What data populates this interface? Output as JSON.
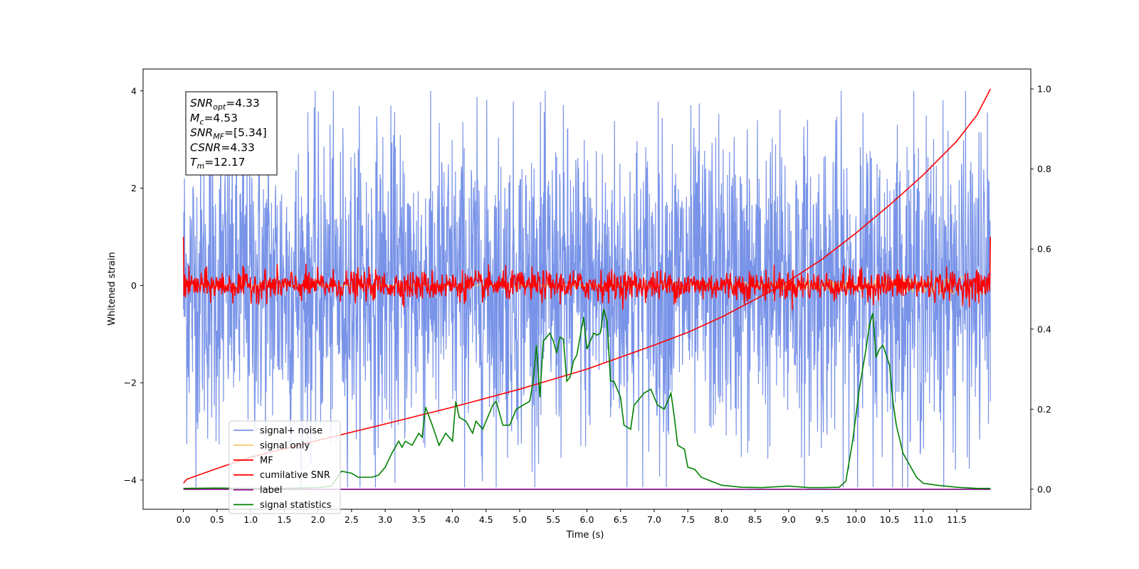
{
  "chart_data": {
    "type": "line",
    "xlabel": "Time (s)",
    "ylabel": "Whitened strain",
    "xlim": [
      -0.6,
      12.6
    ],
    "ylim": [
      -4.6,
      4.45
    ],
    "y2lim": [
      -0.05,
      1.05
    ],
    "xticks": [
      0.0,
      0.5,
      1.0,
      1.5,
      2.0,
      2.5,
      3.0,
      3.5,
      4.0,
      4.5,
      5.0,
      5.5,
      6.0,
      6.5,
      7.0,
      7.5,
      8.0,
      8.5,
      9.0,
      9.5,
      10.0,
      10.5,
      11.0,
      11.5
    ],
    "xtick_labels": [
      "0.0",
      "0.5",
      "1.0",
      "1.5",
      "2.0",
      "2.5",
      "3.0",
      "3.5",
      "4.0",
      "4.5",
      "5.0",
      "5.5",
      "6.0",
      "6.5",
      "7.0",
      "7.5",
      "8.0",
      "8.5",
      "9.0",
      "9.5",
      "10.0",
      "10.5",
      "11.0",
      "11.5"
    ],
    "yticks": [
      -4,
      -2,
      0,
      2,
      4
    ],
    "ytick_labels": [
      "−4",
      "−2",
      "0",
      "2",
      "4"
    ],
    "y2ticks": [
      0.0,
      0.2,
      0.4,
      0.6,
      0.8,
      1.0
    ],
    "y2tick_labels": [
      "0.0",
      "0.2",
      "0.4",
      "0.6",
      "0.8",
      "1.0"
    ],
    "grid": false,
    "legend_position": "lower-left",
    "info_box": [
      {
        "main": "SNR",
        "sub": "opt",
        "value": "=4.33"
      },
      {
        "main": "M",
        "sub": "c",
        "value": "=4.53"
      },
      {
        "main": "SNR",
        "sub": "MF",
        "value": "=[5.34]"
      },
      {
        "main": "CSNR",
        "sub": "",
        "value": "=4.33"
      },
      {
        "main": "T",
        "sub": "m",
        "value": "=12.17"
      }
    ],
    "series": [
      {
        "name": "signal+ noise",
        "color": "#7893e8",
        "axis": "left",
        "description_values": {
          "t_start": 0.0,
          "t_end": 12.0,
          "mean": 0.0,
          "typical_amplitude": 2.2,
          "max": 4.0,
          "min": -4.15
        }
      },
      {
        "name": "signal only",
        "color": "#f5c56a",
        "axis": "left",
        "description_values": {
          "t_start": 0.0,
          "t_end": 12.0,
          "max_amplitude": 0.2
        }
      },
      {
        "name": "MF",
        "color": "#ff0000",
        "axis": "left",
        "description_values": {
          "t_start": 0.0,
          "t_end": 12.0,
          "mean": 0.0,
          "typical_amplitude": 0.25,
          "start_value": 1.0,
          "end_value": 1.0
        }
      },
      {
        "name": "cumilative SNR",
        "color": "#ff0000",
        "axis": "right",
        "x": [
          0.0,
          0.05,
          0.5,
          1.0,
          2.0,
          3.0,
          4.0,
          5.0,
          6.0,
          7.0,
          7.5,
          8.0,
          8.5,
          9.0,
          9.5,
          10.0,
          10.5,
          11.0,
          11.5,
          11.8,
          12.0
        ],
        "y": [
          0.015,
          0.025,
          0.052,
          0.08,
          0.122,
          0.163,
          0.205,
          0.25,
          0.3,
          0.36,
          0.392,
          0.43,
          0.474,
          0.52,
          0.575,
          0.64,
          0.71,
          0.785,
          0.87,
          0.935,
          1.0
        ]
      },
      {
        "name": "label",
        "color": "#800080",
        "axis": "right",
        "x": [
          0.0,
          12.0
        ],
        "y": [
          0.0,
          0.0
        ]
      },
      {
        "name": "signal statistics",
        "color": "#008000",
        "axis": "right",
        "x": [
          0.0,
          0.5,
          1.0,
          1.5,
          2.0,
          2.2,
          2.35,
          2.5,
          2.6,
          2.8,
          2.9,
          3.0,
          3.1,
          3.15,
          3.2,
          3.25,
          3.3,
          3.4,
          3.5,
          3.55,
          3.6,
          3.7,
          3.8,
          3.9,
          4.0,
          4.05,
          4.1,
          4.2,
          4.3,
          4.35,
          4.45,
          4.5,
          4.6,
          4.65,
          4.75,
          4.85,
          4.95,
          5.05,
          5.15,
          5.2,
          5.25,
          5.3,
          5.35,
          5.4,
          5.45,
          5.5,
          5.55,
          5.6,
          5.65,
          5.7,
          5.75,
          5.8,
          5.85,
          5.95,
          6.0,
          6.1,
          6.15,
          6.2,
          6.25,
          6.3,
          6.35,
          6.4,
          6.45,
          6.5,
          6.55,
          6.65,
          6.7,
          6.75,
          6.85,
          6.95,
          7.0,
          7.05,
          7.15,
          7.25,
          7.3,
          7.35,
          7.45,
          7.5,
          7.6,
          7.7,
          7.85,
          8.0,
          8.3,
          8.6,
          9.0,
          9.3,
          9.5,
          9.75,
          9.85,
          9.95,
          10.05,
          10.1,
          10.15,
          10.2,
          10.25,
          10.3,
          10.35,
          10.4,
          10.5,
          10.55,
          10.6,
          10.7,
          10.8,
          10.9,
          11.0,
          11.2,
          11.5,
          11.8,
          12.0
        ],
        "y": [
          0.002,
          0.003,
          0.002,
          0.002,
          0.004,
          0.008,
          0.045,
          0.04,
          0.03,
          0.03,
          0.035,
          0.055,
          0.09,
          0.105,
          0.12,
          0.105,
          0.12,
          0.11,
          0.14,
          0.13,
          0.205,
          0.16,
          0.11,
          0.14,
          0.12,
          0.22,
          0.18,
          0.17,
          0.14,
          0.17,
          0.15,
          0.17,
          0.21,
          0.22,
          0.16,
          0.16,
          0.2,
          0.21,
          0.22,
          0.27,
          0.36,
          0.23,
          0.37,
          0.38,
          0.39,
          0.37,
          0.34,
          0.38,
          0.375,
          0.27,
          0.28,
          0.32,
          0.335,
          0.43,
          0.35,
          0.39,
          0.385,
          0.39,
          0.45,
          0.42,
          0.27,
          0.27,
          0.25,
          0.23,
          0.16,
          0.15,
          0.21,
          0.22,
          0.24,
          0.25,
          0.23,
          0.21,
          0.2,
          0.24,
          0.18,
          0.11,
          0.1,
          0.055,
          0.05,
          0.03,
          0.02,
          0.01,
          0.005,
          0.004,
          0.008,
          0.004,
          0.004,
          0.005,
          0.02,
          0.12,
          0.25,
          0.3,
          0.35,
          0.41,
          0.44,
          0.33,
          0.35,
          0.36,
          0.31,
          0.22,
          0.16,
          0.09,
          0.06,
          0.03,
          0.015,
          0.01,
          0.005,
          0.002,
          0.002
        ]
      }
    ]
  }
}
